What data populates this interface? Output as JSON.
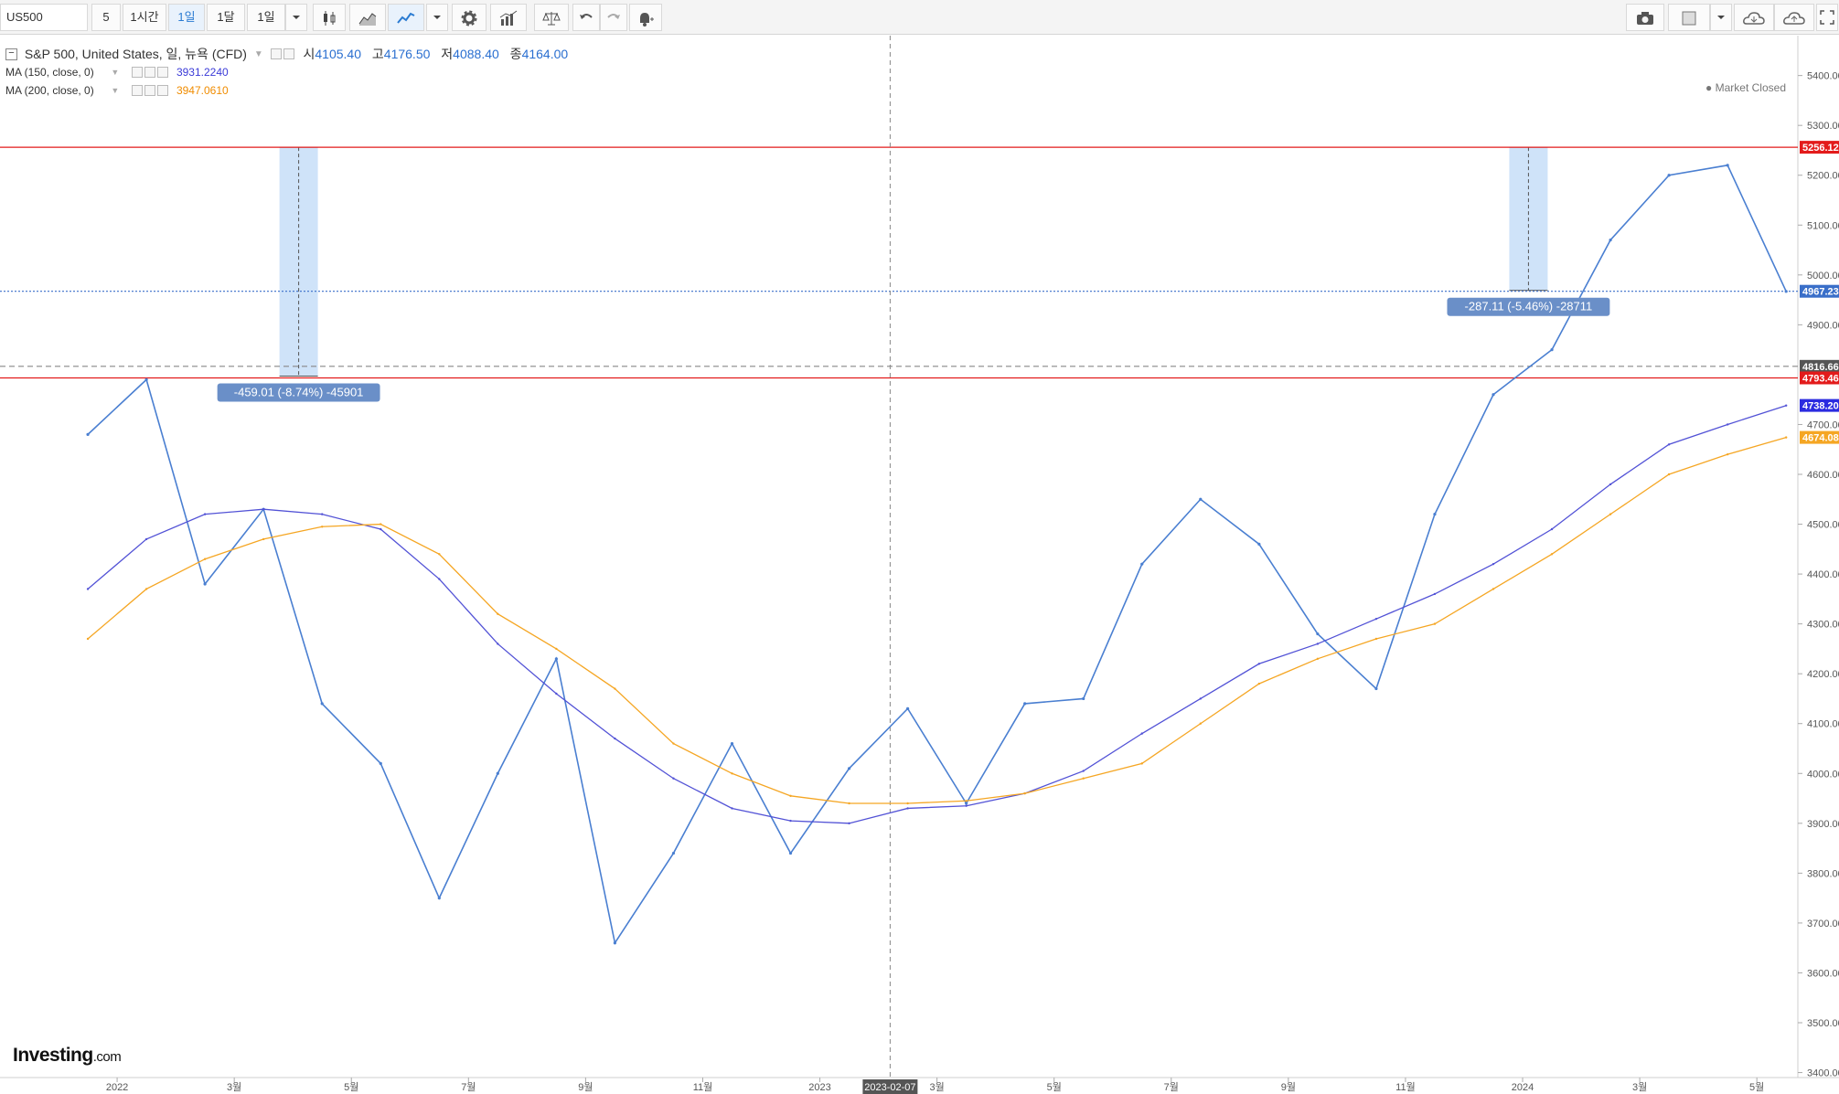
{
  "toolbar": {
    "symbol": "US500",
    "interval_5": "5",
    "interval_1h": "1시간",
    "interval_1d": "1일",
    "interval_1mo": "1달",
    "interval_sel": "1일"
  },
  "legend": {
    "title": "S&P 500, United States, 일, 뉴욕 (CFD)",
    "open_label": "시",
    "open": "4105.40",
    "high_label": "고",
    "high": "4176.50",
    "low_label": "저",
    "low": "4088.40",
    "close_label": "종",
    "close": "4164.00",
    "ma150_label": "MA (150, close, 0)",
    "ma150_value": "3931.2240",
    "ma200_label": "MA (200, close, 0)",
    "ma200_value": "3947.0610"
  },
  "market_status": "Market Closed",
  "logo": {
    "main": "Investing",
    "suffix": ".com"
  },
  "colors": {
    "price": "#4a7fd1",
    "ma150": "#5252d6",
    "ma200": "#f5a623",
    "hline": "#e31b1b",
    "measure": "#cfe3f9",
    "label_bg": "#6a8fc8"
  },
  "annotations": {
    "measure1": "-459.01 (-8.74%) -45901",
    "measure2": "-287.11 (-5.46%) -28711",
    "crosshair_date": "2023-02-07"
  },
  "chart_data": {
    "type": "line",
    "ylim": [
      3390,
      5480
    ],
    "yticks": [
      5400,
      5300,
      5200,
      5100,
      5000,
      4900,
      4700,
      4600,
      4500,
      4400,
      4300,
      4200,
      4100,
      4000,
      3900,
      3800,
      3700,
      3600,
      3500,
      3400
    ],
    "xticks": [
      {
        "t": "2022",
        "x": "2022-01"
      },
      {
        "t": "3월",
        "x": "2022-03"
      },
      {
        "t": "5월",
        "x": "2022-05"
      },
      {
        "t": "7월",
        "x": "2022-07"
      },
      {
        "t": "9월",
        "x": "2022-09"
      },
      {
        "t": "11월",
        "x": "2022-11"
      },
      {
        "t": "2023",
        "x": "2023-01"
      },
      {
        "t": "3월",
        "x": "2023-03"
      },
      {
        "t": "5월",
        "x": "2023-05"
      },
      {
        "t": "7월",
        "x": "2023-07"
      },
      {
        "t": "9월",
        "x": "2023-09"
      },
      {
        "t": "11월",
        "x": "2023-11"
      },
      {
        "t": "2024",
        "x": "2024-01"
      },
      {
        "t": "3월",
        "x": "2024-03"
      },
      {
        "t": "5월",
        "x": "2024-05"
      }
    ],
    "price_labels": [
      {
        "v": 5256.12,
        "t": "5256.12",
        "color": "#e31b1b"
      },
      {
        "v": 4967.23,
        "t": "4967.23",
        "color": "#3a6fc9"
      },
      {
        "v": 4816.66,
        "t": "4816.66",
        "color": "#555555"
      },
      {
        "v": 4793.46,
        "t": "4793.46",
        "color": "#e31b1b"
      },
      {
        "v": 4738.2,
        "t": "4738.20",
        "color": "#2b2be0"
      },
      {
        "v": 4674.08,
        "t": "4674.08",
        "color": "#f5a623"
      }
    ],
    "series": [
      {
        "name": "S&P 500",
        "color": "#4a7fd1",
        "points": [
          [
            "2021-12",
            4680
          ],
          [
            "2022-01",
            4790
          ],
          [
            "2022-02",
            4380
          ],
          [
            "2022-03",
            4530
          ],
          [
            "2022-04",
            4140
          ],
          [
            "2022-05",
            4020
          ],
          [
            "2022-06",
            3750
          ],
          [
            "2022-07",
            4000
          ],
          [
            "2022-08",
            4230
          ],
          [
            "2022-09",
            3660
          ],
          [
            "2022-10",
            3840
          ],
          [
            "2022-11",
            4060
          ],
          [
            "2022-12",
            3840
          ],
          [
            "2023-01",
            4010
          ],
          [
            "2023-02",
            4130
          ],
          [
            "2023-03",
            3940
          ],
          [
            "2023-04",
            4140
          ],
          [
            "2023-05",
            4150
          ],
          [
            "2023-06",
            4420
          ],
          [
            "2023-07",
            4550
          ],
          [
            "2023-08",
            4460
          ],
          [
            "2023-09",
            4280
          ],
          [
            "2023-10",
            4170
          ],
          [
            "2023-11",
            4520
          ],
          [
            "2023-12",
            4760
          ],
          [
            "2024-01",
            4850
          ],
          [
            "2024-02",
            5070
          ],
          [
            "2024-03",
            5200
          ],
          [
            "2024-04",
            5220
          ],
          [
            "2024-05",
            4967
          ]
        ]
      },
      {
        "name": "MA (150, close, 0)",
        "color": "#5252d6",
        "points": [
          [
            "2021-12",
            4370
          ],
          [
            "2022-01",
            4470
          ],
          [
            "2022-02",
            4520
          ],
          [
            "2022-03",
            4530
          ],
          [
            "2022-04",
            4520
          ],
          [
            "2022-05",
            4490
          ],
          [
            "2022-06",
            4390
          ],
          [
            "2022-07",
            4260
          ],
          [
            "2022-08",
            4160
          ],
          [
            "2022-09",
            4070
          ],
          [
            "2022-10",
            3990
          ],
          [
            "2022-11",
            3930
          ],
          [
            "2022-12",
            3905
          ],
          [
            "2023-01",
            3900
          ],
          [
            "2023-02",
            3930
          ],
          [
            "2023-03",
            3935
          ],
          [
            "2023-04",
            3960
          ],
          [
            "2023-05",
            4005
          ],
          [
            "2023-06",
            4080
          ],
          [
            "2023-07",
            4150
          ],
          [
            "2023-08",
            4220
          ],
          [
            "2023-09",
            4260
          ],
          [
            "2023-10",
            4310
          ],
          [
            "2023-11",
            4360
          ],
          [
            "2023-12",
            4420
          ],
          [
            "2024-01",
            4490
          ],
          [
            "2024-02",
            4580
          ],
          [
            "2024-03",
            4660
          ],
          [
            "2024-04",
            4700
          ],
          [
            "2024-05",
            4738
          ]
        ]
      },
      {
        "name": "MA (200, close, 0)",
        "color": "#f5a623",
        "points": [
          [
            "2021-12",
            4270
          ],
          [
            "2022-01",
            4370
          ],
          [
            "2022-02",
            4430
          ],
          [
            "2022-03",
            4470
          ],
          [
            "2022-04",
            4495
          ],
          [
            "2022-05",
            4500
          ],
          [
            "2022-06",
            4440
          ],
          [
            "2022-07",
            4320
          ],
          [
            "2022-08",
            4250
          ],
          [
            "2022-09",
            4170
          ],
          [
            "2022-10",
            4060
          ],
          [
            "2022-11",
            4000
          ],
          [
            "2022-12",
            3955
          ],
          [
            "2023-01",
            3940
          ],
          [
            "2023-02",
            3940
          ],
          [
            "2023-03",
            3945
          ],
          [
            "2023-04",
            3960
          ],
          [
            "2023-05",
            3990
          ],
          [
            "2023-06",
            4020
          ],
          [
            "2023-07",
            4100
          ],
          [
            "2023-08",
            4180
          ],
          [
            "2023-09",
            4230
          ],
          [
            "2023-10",
            4270
          ],
          [
            "2023-11",
            4300
          ],
          [
            "2023-12",
            4370
          ],
          [
            "2024-01",
            4440
          ],
          [
            "2024-02",
            4520
          ],
          [
            "2024-03",
            4600
          ],
          [
            "2024-04",
            4640
          ],
          [
            "2024-05",
            4674
          ]
        ]
      }
    ],
    "hlines": [
      {
        "v": 5256.12,
        "color": "#e31b1b",
        "style": "solid"
      },
      {
        "v": 4793.46,
        "color": "#e31b1b",
        "style": "solid"
      },
      {
        "v": 4967.23,
        "color": "#3a6fc9",
        "style": "dotted"
      },
      {
        "v": 4816.66,
        "color": "#888888",
        "style": "dashed"
      }
    ],
    "measures": [
      {
        "x": "2022-04",
        "y_from": 5256.12,
        "y_to": 4797
      },
      {
        "x": "2024-01",
        "y_from": 5256.12,
        "y_to": 4969
      }
    ],
    "crosshair_x": "2023-02"
  }
}
